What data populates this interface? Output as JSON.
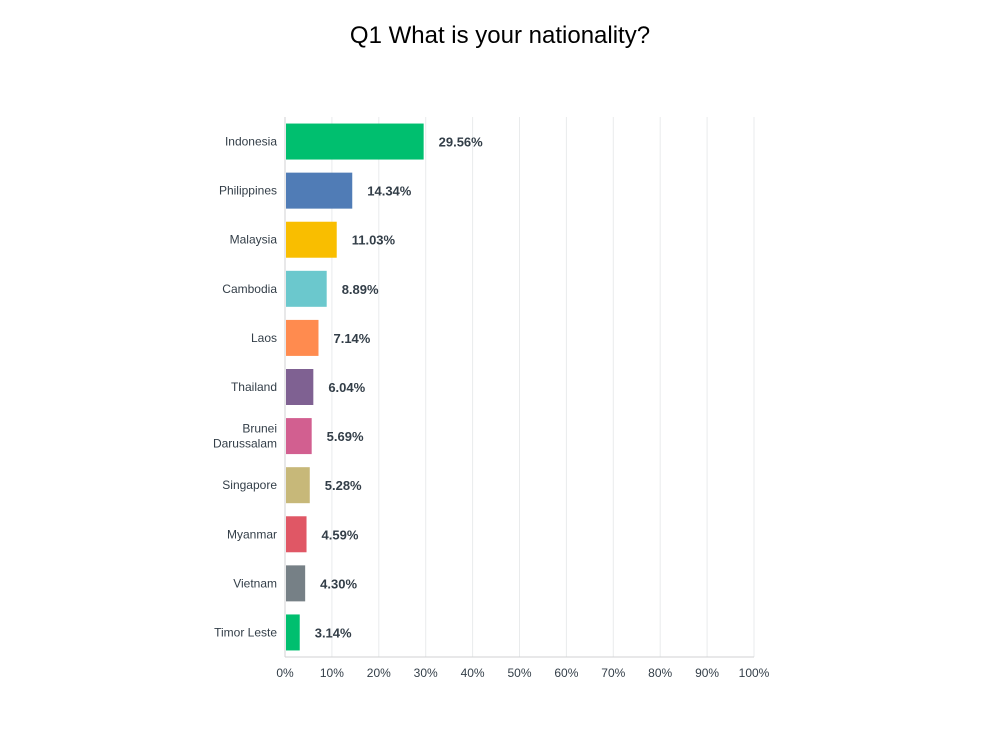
{
  "chart_data": {
    "type": "bar",
    "orientation": "horizontal",
    "title": "Q1 What is your nationality?",
    "categories": [
      "Indonesia",
      "Philippines",
      "Malaysia",
      "Cambodia",
      "Laos",
      "Thailand",
      "Brunei Darussalam",
      "Singapore",
      "Myanmar",
      "Vietnam",
      "Timor Leste"
    ],
    "values": [
      29.56,
      14.34,
      11.03,
      8.89,
      7.14,
      6.04,
      5.69,
      5.28,
      4.59,
      4.3,
      3.14
    ],
    "value_labels": [
      "29.56%",
      "14.34%",
      "11.03%",
      "8.89%",
      "7.14%",
      "6.04%",
      "5.69%",
      "5.28%",
      "4.59%",
      "4.30%",
      "3.14%"
    ],
    "colors": [
      "#00bf6f",
      "#507cb6",
      "#f9be00",
      "#6bc8cd",
      "#ff8b4f",
      "#7f6192",
      "#d25f90",
      "#c7b879",
      "#e05765",
      "#768086",
      "#00bf6f"
    ],
    "xlim": [
      0,
      100
    ],
    "x_ticks": [
      "0%",
      "10%",
      "20%",
      "30%",
      "40%",
      "50%",
      "60%",
      "70%",
      "80%",
      "90%",
      "100%"
    ],
    "grid": true,
    "grid_color": "#e9ebec",
    "axis_color": "#d0d2d3",
    "text_color": "#333e48"
  }
}
